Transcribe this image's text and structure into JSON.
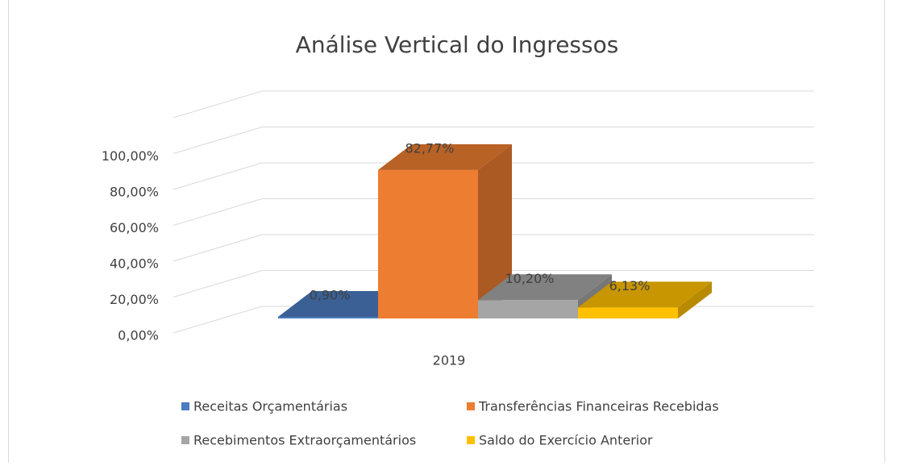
{
  "chart_data": {
    "type": "bar3d",
    "title": "Análise Vertical do Ingressos",
    "categories": [
      "2019"
    ],
    "series": [
      {
        "name": "Receitas Orçamentárias",
        "color": "#4a7bbf",
        "values": [
          0.9
        ],
        "value_labels": [
          "0,90%"
        ]
      },
      {
        "name": "Transferências Financeiras Recebidas",
        "color": "#ed7d31",
        "values": [
          82.77
        ],
        "value_labels": [
          "82,77%"
        ]
      },
      {
        "name": "Recebimentos Extraorçamentários",
        "color": "#a5a5a5",
        "values": [
          10.2
        ],
        "value_labels": [
          "10,20%"
        ]
      },
      {
        "name": "Saldo do Exercício Anterior",
        "color": "#ffc000",
        "values": [
          6.13
        ],
        "value_labels": [
          "6,13%"
        ]
      }
    ],
    "ylim": [
      0,
      120
    ],
    "yticks": [
      {
        "value": 0,
        "label": "0,00%"
      },
      {
        "value": 20,
        "label": "20,00%"
      },
      {
        "value": 40,
        "label": "40,00%"
      },
      {
        "value": 60,
        "label": "60,00%"
      },
      {
        "value": 80,
        "label": "80,00%"
      },
      {
        "value": 100,
        "label": "100,00%"
      }
    ],
    "grid": true,
    "legend": "bottom"
  }
}
